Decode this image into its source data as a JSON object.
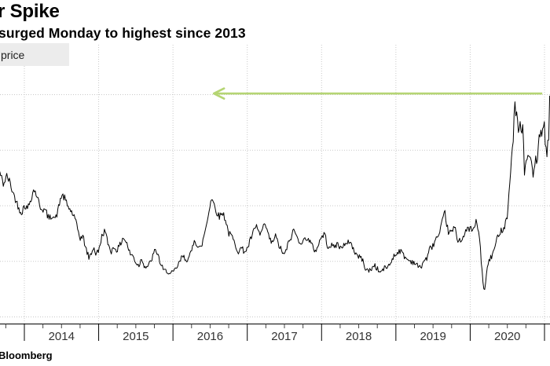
{
  "header": {
    "title": "r Spike",
    "subtitle": "surged Monday to highest since 2013"
  },
  "legend": {
    "label": "price",
    "bg": "#ececec"
  },
  "source": {
    "label": "Bloomberg"
  },
  "colors": {
    "background": "#ffffff",
    "price_line": "#000000",
    "gridline": "#c9c9c9",
    "axis": "#000000",
    "tick": "#444444",
    "year_label": "#333333",
    "annotation_arrow": "#b5d573",
    "legend_bg": "#ececec",
    "legend_text": "#1f1f1f"
  },
  "chart_data": {
    "type": "line",
    "title": "r Spike",
    "subtitle": "surged Monday to highest since 2013",
    "series_name": "price",
    "xlabel": "",
    "ylabel": "",
    "x_range": [
      2013.67,
      2021.07
    ],
    "ylim": [
      9.3,
      34.5
    ],
    "grid": true,
    "x_tick_years": [
      "2014",
      "2015",
      "2016",
      "2017",
      "2018",
      "2019",
      "2020"
    ],
    "y_gridline_prices": [
      10,
      15,
      20,
      25,
      30
    ],
    "minor_tick_step_years": 0.25,
    "annotation_arrow": {
      "meaning": "points left from 2021 spike toward 2013 levels",
      "y_price": 30.1,
      "x_from_year": 2020.97,
      "x_to_year": 2016.55,
      "direction": "left"
    },
    "noise_amplitude_base": 0.06,
    "noise_amplitude_per_dollar": 0.013,
    "points": [
      [
        2013.67,
        23.0
      ],
      [
        2013.72,
        21.9
      ],
      [
        2013.76,
        22.7
      ],
      [
        2013.8,
        22.2
      ],
      [
        2013.84,
        21.3
      ],
      [
        2013.88,
        20.6
      ],
      [
        2013.93,
        19.7
      ],
      [
        2013.97,
        19.4
      ],
      [
        2014.0,
        20.1
      ],
      [
        2014.04,
        19.7
      ],
      [
        2014.09,
        20.7
      ],
      [
        2014.13,
        21.5
      ],
      [
        2014.17,
        20.9
      ],
      [
        2014.21,
        19.9
      ],
      [
        2014.25,
        19.7
      ],
      [
        2014.29,
        19.5
      ],
      [
        2014.33,
        18.8
      ],
      [
        2014.38,
        19.2
      ],
      [
        2014.42,
        18.8
      ],
      [
        2014.46,
        19.8
      ],
      [
        2014.5,
        21.0
      ],
      [
        2014.54,
        20.7
      ],
      [
        2014.58,
        20.0
      ],
      [
        2014.63,
        19.5
      ],
      [
        2014.67,
        19.0
      ],
      [
        2014.71,
        18.1
      ],
      [
        2014.75,
        17.1
      ],
      [
        2014.79,
        17.2
      ],
      [
        2014.83,
        16.1
      ],
      [
        2014.87,
        15.3
      ],
      [
        2014.9,
        15.7
      ],
      [
        2014.93,
        16.3
      ],
      [
        2014.96,
        15.7
      ],
      [
        2015.0,
        15.9
      ],
      [
        2015.04,
        17.2
      ],
      [
        2015.08,
        17.8
      ],
      [
        2015.13,
        16.5
      ],
      [
        2015.17,
        15.9
      ],
      [
        2015.21,
        16.3
      ],
      [
        2015.25,
        16.0
      ],
      [
        2015.29,
        16.5
      ],
      [
        2015.33,
        17.2
      ],
      [
        2015.38,
        16.6
      ],
      [
        2015.42,
        15.7
      ],
      [
        2015.46,
        15.5
      ],
      [
        2015.5,
        14.9
      ],
      [
        2015.54,
        14.6
      ],
      [
        2015.58,
        15.3
      ],
      [
        2015.62,
        14.5
      ],
      [
        2015.67,
        14.6
      ],
      [
        2015.71,
        15.1
      ],
      [
        2015.75,
        15.9
      ],
      [
        2015.79,
        15.8
      ],
      [
        2015.83,
        14.8
      ],
      [
        2015.88,
        14.1
      ],
      [
        2015.92,
        14.2
      ],
      [
        2015.96,
        13.8
      ],
      [
        2016.0,
        14.0
      ],
      [
        2016.04,
        14.3
      ],
      [
        2016.08,
        14.8
      ],
      [
        2016.13,
        15.5
      ],
      [
        2016.17,
        15.2
      ],
      [
        2016.21,
        15.2
      ],
      [
        2016.25,
        15.9
      ],
      [
        2016.29,
        17.1
      ],
      [
        2016.33,
        16.3
      ],
      [
        2016.38,
        16.2
      ],
      [
        2016.42,
        17.4
      ],
      [
        2016.46,
        18.6
      ],
      [
        2016.5,
        20.2
      ],
      [
        2016.52,
        20.7
      ],
      [
        2016.55,
        20.2
      ],
      [
        2016.58,
        19.6
      ],
      [
        2016.62,
        19.0
      ],
      [
        2016.67,
        19.4
      ],
      [
        2016.71,
        18.7
      ],
      [
        2016.75,
        17.5
      ],
      [
        2016.79,
        17.3
      ],
      [
        2016.83,
        16.6
      ],
      [
        2016.88,
        15.9
      ],
      [
        2016.92,
        16.2
      ],
      [
        2016.96,
        15.9
      ],
      [
        2017.0,
        16.1
      ],
      [
        2017.04,
        16.9
      ],
      [
        2017.08,
        17.6
      ],
      [
        2017.13,
        18.2
      ],
      [
        2017.17,
        17.3
      ],
      [
        2017.21,
        18.0
      ],
      [
        2017.25,
        18.2
      ],
      [
        2017.29,
        17.2
      ],
      [
        2017.33,
        16.6
      ],
      [
        2017.38,
        17.3
      ],
      [
        2017.42,
        16.5
      ],
      [
        2017.46,
        16.0
      ],
      [
        2017.5,
        15.5
      ],
      [
        2017.54,
        16.4
      ],
      [
        2017.58,
        17.0
      ],
      [
        2017.63,
        17.9
      ],
      [
        2017.67,
        17.1
      ],
      [
        2017.71,
        16.8
      ],
      [
        2017.75,
        16.7
      ],
      [
        2017.79,
        17.2
      ],
      [
        2017.83,
        16.9
      ],
      [
        2017.88,
        16.3
      ],
      [
        2017.92,
        15.9
      ],
      [
        2017.96,
        16.6
      ],
      [
        2018.0,
        17.2
      ],
      [
        2018.04,
        17.5
      ],
      [
        2018.08,
        16.4
      ],
      [
        2018.13,
        16.4
      ],
      [
        2018.17,
        16.3
      ],
      [
        2018.21,
        16.6
      ],
      [
        2018.25,
        16.2
      ],
      [
        2018.29,
        16.5
      ],
      [
        2018.33,
        16.4
      ],
      [
        2018.38,
        16.9
      ],
      [
        2018.42,
        16.2
      ],
      [
        2018.46,
        15.7
      ],
      [
        2018.5,
        15.4
      ],
      [
        2018.54,
        15.3
      ],
      [
        2018.58,
        14.5
      ],
      [
        2018.63,
        14.1
      ],
      [
        2018.67,
        14.3
      ],
      [
        2018.71,
        14.7
      ],
      [
        2018.75,
        14.3
      ],
      [
        2018.79,
        14.0
      ],
      [
        2018.83,
        14.3
      ],
      [
        2018.88,
        14.5
      ],
      [
        2018.92,
        14.7
      ],
      [
        2018.96,
        15.4
      ],
      [
        2019.0,
        15.6
      ],
      [
        2019.04,
        16.0
      ],
      [
        2019.08,
        15.8
      ],
      [
        2019.13,
        15.3
      ],
      [
        2019.17,
        15.1
      ],
      [
        2019.21,
        15.0
      ],
      [
        2019.25,
        14.9
      ],
      [
        2019.29,
        14.6
      ],
      [
        2019.33,
        14.4
      ],
      [
        2019.38,
        15.1
      ],
      [
        2019.42,
        15.3
      ],
      [
        2019.46,
        16.2
      ],
      [
        2019.5,
        16.4
      ],
      [
        2019.54,
        17.1
      ],
      [
        2019.58,
        17.2
      ],
      [
        2019.63,
        18.7
      ],
      [
        2019.66,
        19.4
      ],
      [
        2019.69,
        18.1
      ],
      [
        2019.71,
        17.6
      ],
      [
        2019.75,
        17.6
      ],
      [
        2019.79,
        18.1
      ],
      [
        2019.83,
        16.9
      ],
      [
        2019.88,
        17.0
      ],
      [
        2019.92,
        17.3
      ],
      [
        2019.96,
        17.9
      ],
      [
        2020.0,
        18.0
      ],
      [
        2020.04,
        17.7
      ],
      [
        2020.08,
        18.6
      ],
      [
        2020.12,
        17.5
      ],
      [
        2020.15,
        14.9
      ],
      [
        2020.19,
        12.0
      ],
      [
        2020.22,
        13.9
      ],
      [
        2020.25,
        15.1
      ],
      [
        2020.29,
        15.4
      ],
      [
        2020.33,
        16.2
      ],
      [
        2020.38,
        17.5
      ],
      [
        2020.42,
        17.8
      ],
      [
        2020.46,
        18.1
      ],
      [
        2020.5,
        19.2
      ],
      [
        2020.52,
        20.8
      ],
      [
        2020.54,
        22.9
      ],
      [
        2020.56,
        24.5
      ],
      [
        2020.58,
        26.2
      ],
      [
        2020.6,
        29.8
      ],
      [
        2020.61,
        27.6
      ],
      [
        2020.63,
        28.6
      ],
      [
        2020.65,
        26.4
      ],
      [
        2020.67,
        27.6
      ],
      [
        2020.69,
        26.7
      ],
      [
        2020.71,
        27.2
      ],
      [
        2020.73,
        22.9
      ],
      [
        2020.75,
        23.6
      ],
      [
        2020.77,
        24.4
      ],
      [
        2020.79,
        24.6
      ],
      [
        2020.81,
        24.0
      ],
      [
        2020.83,
        23.6
      ],
      [
        2020.85,
        22.5
      ],
      [
        2020.88,
        24.2
      ],
      [
        2020.9,
        23.9
      ],
      [
        2020.92,
        25.9
      ],
      [
        2020.94,
        26.2
      ],
      [
        2020.96,
        26.6
      ],
      [
        2021.0,
        27.2
      ],
      [
        2021.01,
        25.6
      ],
      [
        2021.03,
        24.4
      ],
      [
        2021.045,
        25.6
      ],
      [
        2021.055,
        25.8
      ],
      [
        2021.07,
        29.9
      ]
    ]
  }
}
